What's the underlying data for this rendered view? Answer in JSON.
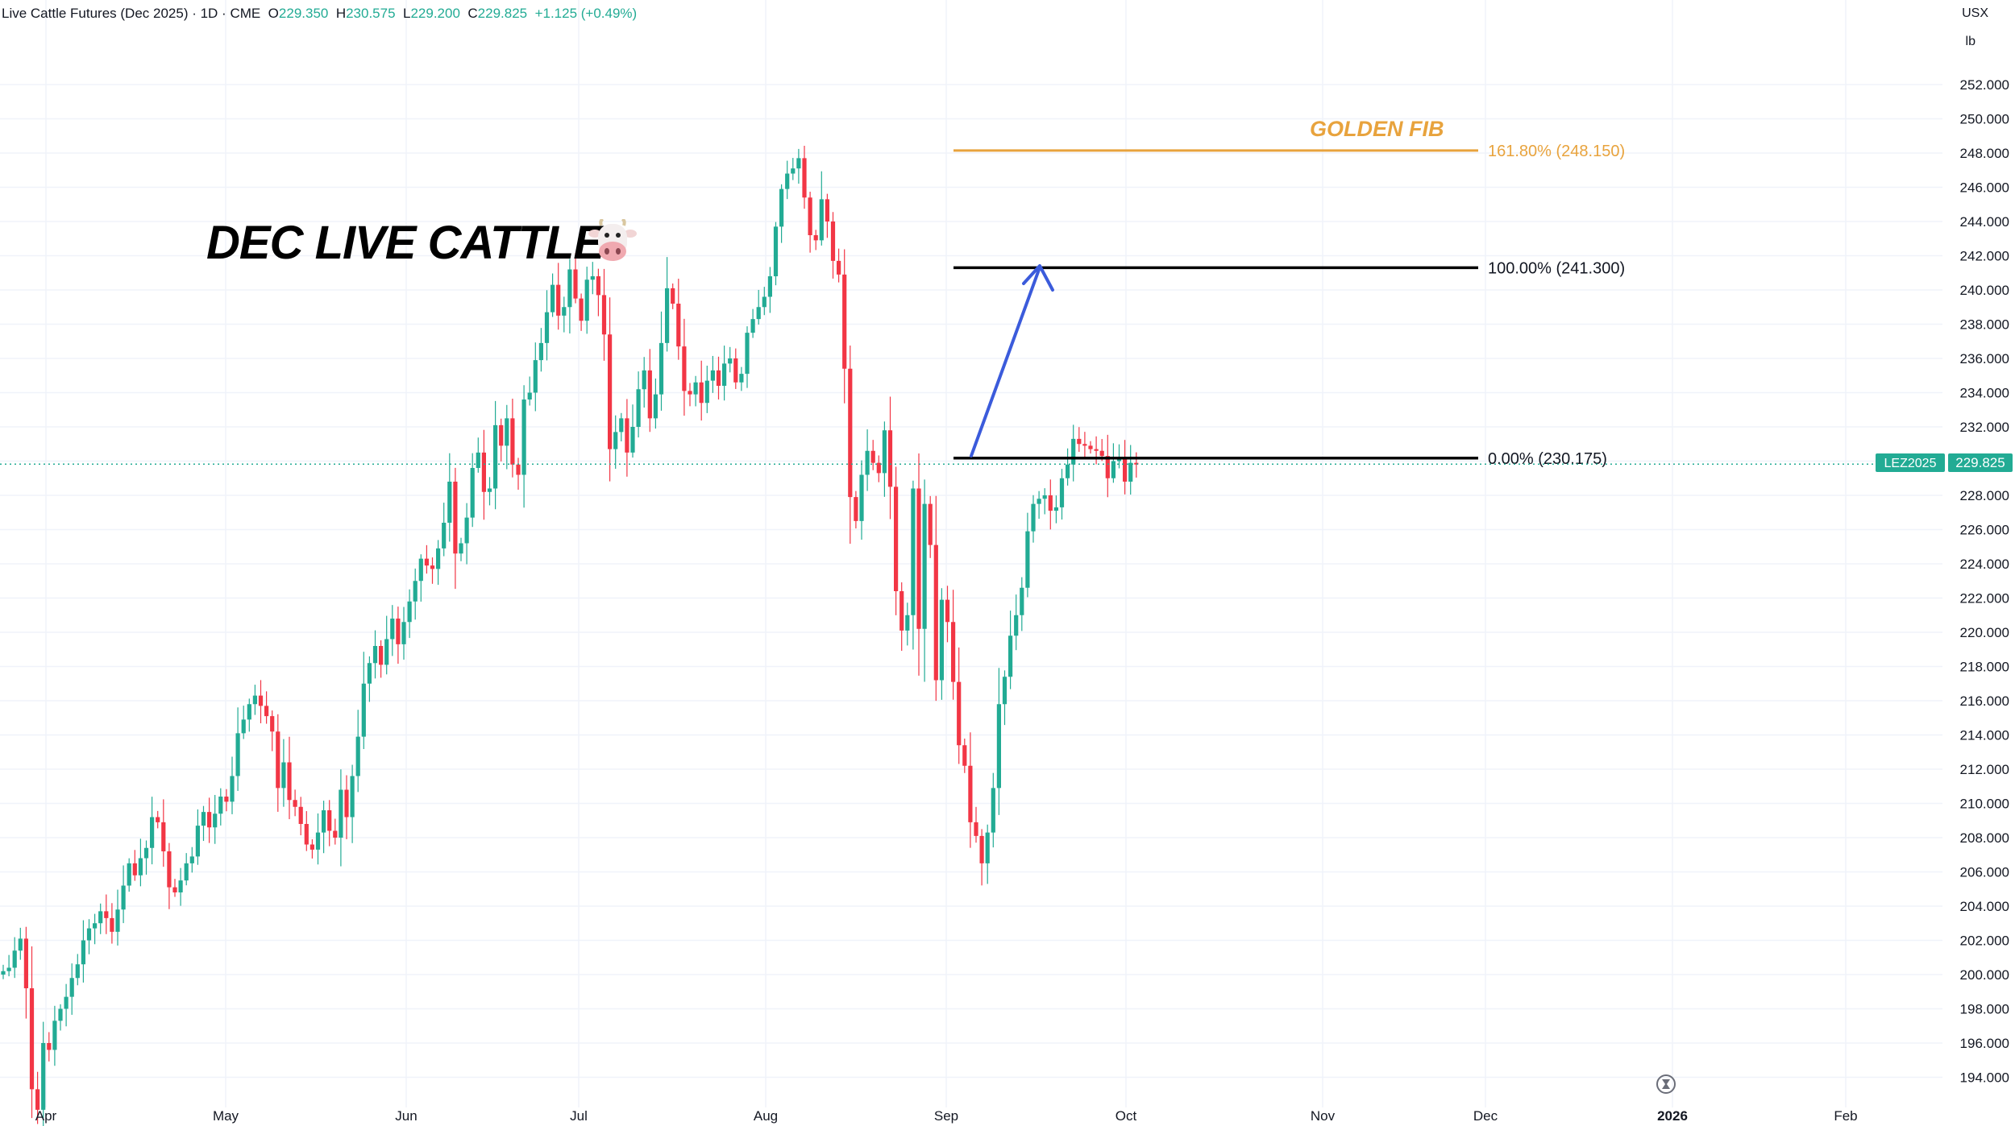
{
  "header": {
    "symbol": "Live Cattle Futures (Dec 2025) · 1D · CME",
    "o_label": "O",
    "o": "229.350",
    "h_label": "H",
    "h": "230.575",
    "l_label": "L",
    "l": "229.200",
    "c_label": "C",
    "c": "229.825",
    "change": "+1.125 (+0.49%)"
  },
  "axis_units": {
    "currency": "USX",
    "unit": "lb"
  },
  "annotations": {
    "title": "DEC LIVE CATTLE",
    "title_icon": "cow-face-icon",
    "golden_fib_label": "GOLDEN FIB",
    "fib_levels": [
      {
        "label": "161.80% (248.150)",
        "price": 248.15,
        "color": "#e8a33d"
      },
      {
        "label": "100.00% (241.300)",
        "price": 241.3,
        "color": "#000000"
      },
      {
        "label": "0.00% (230.175)",
        "price": 230.175,
        "color": "#000000"
      }
    ],
    "arrow_color": "#3b5bdb"
  },
  "price_tag": {
    "symbol": "LEZ2025",
    "price": "229.825",
    "color": "#22ab94"
  },
  "colors": {
    "up": "#22ab94",
    "down": "#f23645",
    "grid": "#f0f3fa",
    "fib_gold": "#e8a33d"
  },
  "chart_data": {
    "type": "candlestick",
    "ylim": [
      192.5,
      253.5
    ],
    "yticks": [
      "252.000",
      "250.000",
      "248.000",
      "246.000",
      "244.000",
      "242.000",
      "240.000",
      "238.000",
      "236.000",
      "234.000",
      "232.000",
      "230.000",
      "228.000",
      "226.000",
      "224.000",
      "222.000",
      "220.000",
      "218.000",
      "216.000",
      "214.000",
      "212.000",
      "210.000",
      "208.000",
      "206.000",
      "204.000",
      "202.000",
      "200.000",
      "198.000",
      "196.000",
      "194.000"
    ],
    "xtick_labels": [
      "Apr",
      "May",
      "Jun",
      "Jul",
      "Aug",
      "Sep",
      "Oct",
      "Nov",
      "Dec",
      "2026",
      "Feb"
    ],
    "closes": [
      200.2,
      200.4,
      201.4,
      202.1,
      199.2,
      193.3,
      192.1,
      196.0,
      195.6,
      197.3,
      198.0,
      198.7,
      199.8,
      200.6,
      202.0,
      202.7,
      203.0,
      203.7,
      203.3,
      202.5,
      203.8,
      205.2,
      206.5,
      205.8,
      206.8,
      207.4,
      209.2,
      208.9,
      207.2,
      205.1,
      204.8,
      205.5,
      206.5,
      206.9,
      208.7,
      209.5,
      208.6,
      209.4,
      210.4,
      210.1,
      211.6,
      214.1,
      214.9,
      215.8,
      216.3,
      215.7,
      215.1,
      214.2,
      210.9,
      212.4,
      210.2,
      209.8,
      208.8,
      207.6,
      207.3,
      208.3,
      209.6,
      208.4,
      208.0,
      210.8,
      209.2,
      211.6,
      213.9,
      217.0,
      218.2,
      219.2,
      218.1,
      219.6,
      220.8,
      219.3,
      220.6,
      221.8,
      223.0,
      224.3,
      223.9,
      223.7,
      224.9,
      226.4,
      228.8,
      224.6,
      225.2,
      226.7,
      229.6,
      230.5,
      228.2,
      228.4,
      232.1,
      230.9,
      232.5,
      229.8,
      229.2,
      233.6,
      234.0,
      235.9,
      236.9,
      238.7,
      240.3,
      238.5,
      239.0,
      241.2,
      239.5,
      238.2,
      240.6,
      240.8,
      239.7,
      237.4,
      230.7,
      231.7,
      232.5,
      230.5,
      232.0,
      234.2,
      235.3,
      232.5,
      233.9,
      236.9,
      240.1,
      239.2,
      236.7,
      234.1,
      233.9,
      234.6,
      233.4,
      234.7,
      235.3,
      234.4,
      235.7,
      236.0,
      234.6,
      235.1,
      237.5,
      238.3,
      239.0,
      239.6,
      240.8,
      243.7,
      245.9,
      246.8,
      247.1,
      247.7,
      245.4,
      243.2,
      242.9,
      245.3,
      244.0,
      241.7,
      240.9,
      235.4,
      227.9,
      226.5,
      229.2,
      230.6,
      229.9,
      229.3,
      231.8,
      228.5,
      222.4,
      220.1,
      221.0,
      228.4,
      220.2,
      227.5,
      225.1,
      217.2,
      221.9,
      220.6,
      217.1,
      213.4,
      212.2,
      208.9,
      208.1,
      206.5,
      208.3,
      210.9,
      215.8,
      217.4,
      219.8,
      221.0,
      222.6,
      225.9,
      227.5,
      227.8,
      228.0,
      227.1,
      227.3,
      229.0,
      229.8,
      231.3,
      231.0,
      230.9,
      230.7,
      230.6,
      230.3,
      229.0,
      230.0,
      230.2,
      228.8,
      229.9,
      229.8
    ],
    "series": []
  }
}
